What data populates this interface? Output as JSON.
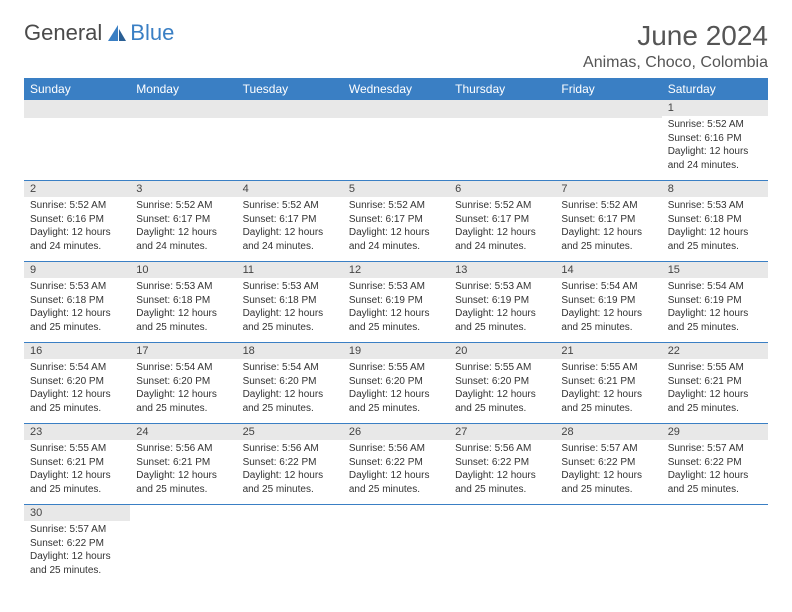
{
  "brand": {
    "part1": "General",
    "part2": "Blue"
  },
  "title": "June 2024",
  "location": "Animas, Choco, Colombia",
  "colors": {
    "header_bg": "#3a7fc4",
    "header_fg": "#ffffff",
    "daynum_bg": "#e8e8e8",
    "border": "#3a7fc4",
    "text": "#333333"
  },
  "weekdays": [
    "Sunday",
    "Monday",
    "Tuesday",
    "Wednesday",
    "Thursday",
    "Friday",
    "Saturday"
  ],
  "days": {
    "1": {
      "sunrise": "5:52 AM",
      "sunset": "6:16 PM",
      "daylight": "12 hours and 24 minutes."
    },
    "2": {
      "sunrise": "5:52 AM",
      "sunset": "6:16 PM",
      "daylight": "12 hours and 24 minutes."
    },
    "3": {
      "sunrise": "5:52 AM",
      "sunset": "6:17 PM",
      "daylight": "12 hours and 24 minutes."
    },
    "4": {
      "sunrise": "5:52 AM",
      "sunset": "6:17 PM",
      "daylight": "12 hours and 24 minutes."
    },
    "5": {
      "sunrise": "5:52 AM",
      "sunset": "6:17 PM",
      "daylight": "12 hours and 24 minutes."
    },
    "6": {
      "sunrise": "5:52 AM",
      "sunset": "6:17 PM",
      "daylight": "12 hours and 24 minutes."
    },
    "7": {
      "sunrise": "5:52 AM",
      "sunset": "6:17 PM",
      "daylight": "12 hours and 25 minutes."
    },
    "8": {
      "sunrise": "5:53 AM",
      "sunset": "6:18 PM",
      "daylight": "12 hours and 25 minutes."
    },
    "9": {
      "sunrise": "5:53 AM",
      "sunset": "6:18 PM",
      "daylight": "12 hours and 25 minutes."
    },
    "10": {
      "sunrise": "5:53 AM",
      "sunset": "6:18 PM",
      "daylight": "12 hours and 25 minutes."
    },
    "11": {
      "sunrise": "5:53 AM",
      "sunset": "6:18 PM",
      "daylight": "12 hours and 25 minutes."
    },
    "12": {
      "sunrise": "5:53 AM",
      "sunset": "6:19 PM",
      "daylight": "12 hours and 25 minutes."
    },
    "13": {
      "sunrise": "5:53 AM",
      "sunset": "6:19 PM",
      "daylight": "12 hours and 25 minutes."
    },
    "14": {
      "sunrise": "5:54 AM",
      "sunset": "6:19 PM",
      "daylight": "12 hours and 25 minutes."
    },
    "15": {
      "sunrise": "5:54 AM",
      "sunset": "6:19 PM",
      "daylight": "12 hours and 25 minutes."
    },
    "16": {
      "sunrise": "5:54 AM",
      "sunset": "6:20 PM",
      "daylight": "12 hours and 25 minutes."
    },
    "17": {
      "sunrise": "5:54 AM",
      "sunset": "6:20 PM",
      "daylight": "12 hours and 25 minutes."
    },
    "18": {
      "sunrise": "5:54 AM",
      "sunset": "6:20 PM",
      "daylight": "12 hours and 25 minutes."
    },
    "19": {
      "sunrise": "5:55 AM",
      "sunset": "6:20 PM",
      "daylight": "12 hours and 25 minutes."
    },
    "20": {
      "sunrise": "5:55 AM",
      "sunset": "6:20 PM",
      "daylight": "12 hours and 25 minutes."
    },
    "21": {
      "sunrise": "5:55 AM",
      "sunset": "6:21 PM",
      "daylight": "12 hours and 25 minutes."
    },
    "22": {
      "sunrise": "5:55 AM",
      "sunset": "6:21 PM",
      "daylight": "12 hours and 25 minutes."
    },
    "23": {
      "sunrise": "5:55 AM",
      "sunset": "6:21 PM",
      "daylight": "12 hours and 25 minutes."
    },
    "24": {
      "sunrise": "5:56 AM",
      "sunset": "6:21 PM",
      "daylight": "12 hours and 25 minutes."
    },
    "25": {
      "sunrise": "5:56 AM",
      "sunset": "6:22 PM",
      "daylight": "12 hours and 25 minutes."
    },
    "26": {
      "sunrise": "5:56 AM",
      "sunset": "6:22 PM",
      "daylight": "12 hours and 25 minutes."
    },
    "27": {
      "sunrise": "5:56 AM",
      "sunset": "6:22 PM",
      "daylight": "12 hours and 25 minutes."
    },
    "28": {
      "sunrise": "5:57 AM",
      "sunset": "6:22 PM",
      "daylight": "12 hours and 25 minutes."
    },
    "29": {
      "sunrise": "5:57 AM",
      "sunset": "6:22 PM",
      "daylight": "12 hours and 25 minutes."
    },
    "30": {
      "sunrise": "5:57 AM",
      "sunset": "6:22 PM",
      "daylight": "12 hours and 25 minutes."
    }
  },
  "layout": {
    "first_weekday_index": 6,
    "num_days": 30,
    "labels": {
      "sunrise": "Sunrise:",
      "sunset": "Sunset:",
      "daylight": "Daylight:"
    }
  }
}
